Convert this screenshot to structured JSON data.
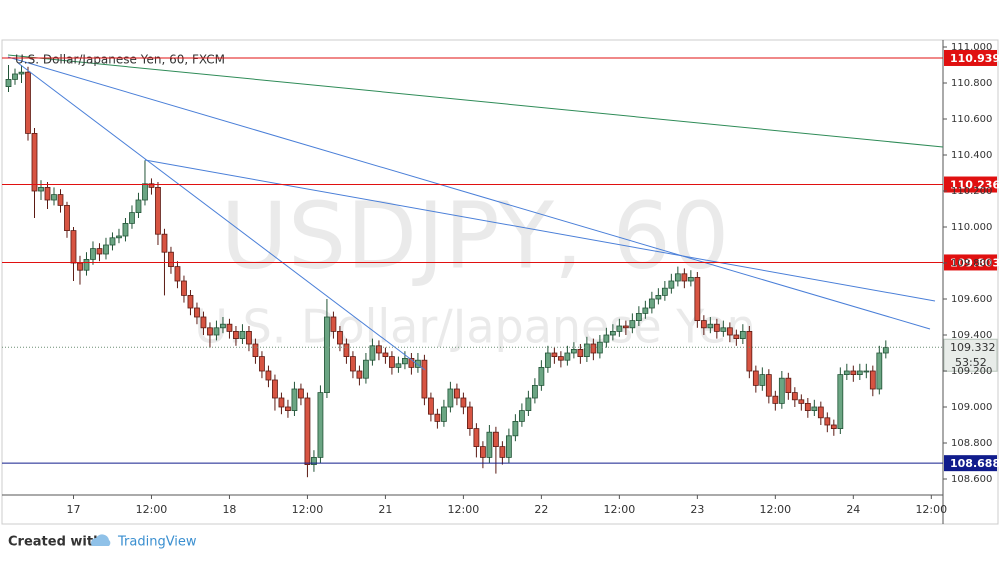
{
  "chart_data": {
    "type": "candlestick",
    "title": "U.S. Dollar/Japanese Yen, 60, FXCM",
    "watermark": "USDJPY, 60",
    "watermark_subtitle": "U.S. Dollar/Japanese Yen",
    "up_color": "#6ba583",
    "down_color": "#d75442",
    "open": [
      110.78,
      110.82,
      110.85,
      110.86,
      110.52,
      110.2,
      110.22,
      110.15,
      110.18,
      110.12,
      109.98,
      109.8,
      109.76,
      109.82,
      109.88,
      109.85,
      109.9,
      109.94,
      109.95,
      110.02,
      110.08,
      110.15,
      110.24,
      110.22,
      109.96,
      109.86,
      109.78,
      109.7,
      109.62,
      109.55,
      109.5,
      109.44,
      109.4,
      109.44,
      109.46,
      109.42,
      109.38,
      109.42,
      109.35,
      109.28,
      109.2,
      109.15,
      109.05,
      109.0,
      108.98,
      109.1,
      109.05,
      108.68,
      108.72,
      109.08,
      109.5,
      109.42,
      109.35,
      109.28,
      109.2,
      109.16,
      109.26,
      109.34,
      109.3,
      109.28,
      109.22,
      109.24,
      109.27,
      109.22,
      109.26,
      109.05,
      108.96,
      108.92,
      109.0,
      109.1,
      109.05,
      109.0,
      108.88,
      108.78,
      108.72,
      108.86,
      108.78,
      108.72,
      108.84,
      108.92,
      108.98,
      109.05,
      109.12,
      109.22,
      109.3,
      109.28,
      109.26,
      109.3,
      109.32,
      109.28,
      109.35,
      109.3,
      109.36,
      109.4,
      109.42,
      109.45,
      109.44,
      109.48,
      109.52,
      109.55,
      109.6,
      109.62,
      109.66,
      109.7,
      109.74,
      109.7,
      109.72,
      109.48,
      109.44,
      109.46,
      109.42,
      109.44,
      109.4,
      109.38,
      109.42,
      109.2,
      109.12,
      109.18,
      109.06,
      109.02,
      109.16,
      109.08,
      109.04,
      109.02,
      108.98,
      109.0,
      108.94,
      108.9,
      108.88,
      109.18,
      109.2,
      109.18,
      109.2,
      109.2,
      109.1,
      109.3
    ],
    "high": [
      110.9,
      110.88,
      110.9,
      110.89,
      110.55,
      110.26,
      110.25,
      110.22,
      110.21,
      110.14,
      110.0,
      109.84,
      109.86,
      109.92,
      109.91,
      109.94,
      109.97,
      109.99,
      110.05,
      110.12,
      110.19,
      110.37,
      110.27,
      110.25,
      109.99,
      109.89,
      109.81,
      109.73,
      109.65,
      109.58,
      109.53,
      109.47,
      109.48,
      109.5,
      109.49,
      109.45,
      109.46,
      109.45,
      109.38,
      109.31,
      109.23,
      109.18,
      109.08,
      109.04,
      109.14,
      109.13,
      109.08,
      108.76,
      109.12,
      109.6,
      109.53,
      109.45,
      109.38,
      109.31,
      109.23,
      109.3,
      109.38,
      109.37,
      109.33,
      109.31,
      109.28,
      109.31,
      109.3,
      109.3,
      109.29,
      109.08,
      108.99,
      109.04,
      109.14,
      109.13,
      109.08,
      109.03,
      108.91,
      108.81,
      108.9,
      108.89,
      108.81,
      108.88,
      108.96,
      109.02,
      109.09,
      109.16,
      109.26,
      109.34,
      109.33,
      109.31,
      109.34,
      109.36,
      109.35,
      109.39,
      109.38,
      109.4,
      109.44,
      109.46,
      109.49,
      109.48,
      109.52,
      109.56,
      109.59,
      109.64,
      109.66,
      109.7,
      109.74,
      109.78,
      109.77,
      109.76,
      109.75,
      109.51,
      109.5,
      109.49,
      109.48,
      109.47,
      109.43,
      109.46,
      109.45,
      109.23,
      109.22,
      109.21,
      109.09,
      109.2,
      109.19,
      109.11,
      109.07,
      109.05,
      109.04,
      109.03,
      108.97,
      108.93,
      109.22,
      109.24,
      109.23,
      109.24,
      109.24,
      109.23,
      109.34,
      109.37
    ],
    "low": [
      110.75,
      110.79,
      110.8,
      110.48,
      110.05,
      110.15,
      110.1,
      110.12,
      110.08,
      109.94,
      109.7,
      109.68,
      109.73,
      109.79,
      109.81,
      109.82,
      109.87,
      109.91,
      109.92,
      109.99,
      110.05,
      110.12,
      110.18,
      109.9,
      109.62,
      109.74,
      109.66,
      109.58,
      109.51,
      109.46,
      109.4,
      109.33,
      109.37,
      109.41,
      109.38,
      109.34,
      109.35,
      109.31,
      109.24,
      109.16,
      109.11,
      108.98,
      108.96,
      108.94,
      108.95,
      109.01,
      108.61,
      108.64,
      108.69,
      109.05,
      109.38,
      109.31,
      109.24,
      109.16,
      109.12,
      109.13,
      109.23,
      109.26,
      109.24,
      109.18,
      109.19,
      109.21,
      109.18,
      109.19,
      109.01,
      108.92,
      108.88,
      108.89,
      108.97,
      109.01,
      108.96,
      108.84,
      108.72,
      108.66,
      108.69,
      108.63,
      108.68,
      108.69,
      108.81,
      108.89,
      108.95,
      109.02,
      109.09,
      109.19,
      109.24,
      109.22,
      109.23,
      109.27,
      109.24,
      109.25,
      109.26,
      109.27,
      109.33,
      109.37,
      109.39,
      109.4,
      109.41,
      109.45,
      109.49,
      109.52,
      109.57,
      109.59,
      109.63,
      109.67,
      109.66,
      109.67,
      109.44,
      109.4,
      109.41,
      109.38,
      109.39,
      109.36,
      109.34,
      109.35,
      109.16,
      109.08,
      109.09,
      109.02,
      108.98,
      108.99,
      109.04,
      109.0,
      108.98,
      108.94,
      108.95,
      108.9,
      108.86,
      108.84,
      108.85,
      109.15,
      109.14,
      109.15,
      109.16,
      109.06,
      109.07,
      109.27
    ],
    "close": [
      110.82,
      110.85,
      110.86,
      110.52,
      110.2,
      110.22,
      110.15,
      110.18,
      110.12,
      109.98,
      109.8,
      109.76,
      109.82,
      109.88,
      109.85,
      109.9,
      109.94,
      109.95,
      110.02,
      110.08,
      110.15,
      110.24,
      110.22,
      109.96,
      109.86,
      109.78,
      109.7,
      109.62,
      109.55,
      109.5,
      109.44,
      109.4,
      109.44,
      109.46,
      109.42,
      109.38,
      109.42,
      109.35,
      109.28,
      109.2,
      109.15,
      109.05,
      109.0,
      108.98,
      109.1,
      109.05,
      108.68,
      108.72,
      109.08,
      109.5,
      109.42,
      109.35,
      109.28,
      109.2,
      109.16,
      109.26,
      109.34,
      109.3,
      109.28,
      109.22,
      109.24,
      109.27,
      109.22,
      109.26,
      109.05,
      108.96,
      108.92,
      109.0,
      109.1,
      109.05,
      109.0,
      108.88,
      108.78,
      108.72,
      108.86,
      108.78,
      108.72,
      108.84,
      108.92,
      108.98,
      109.05,
      109.12,
      109.22,
      109.3,
      109.28,
      109.26,
      109.3,
      109.32,
      109.28,
      109.35,
      109.3,
      109.36,
      109.4,
      109.42,
      109.45,
      109.44,
      109.48,
      109.52,
      109.55,
      109.6,
      109.62,
      109.66,
      109.7,
      109.74,
      109.7,
      109.72,
      109.48,
      109.44,
      109.46,
      109.42,
      109.44,
      109.4,
      109.38,
      109.42,
      109.2,
      109.12,
      109.18,
      109.06,
      109.02,
      109.16,
      109.08,
      109.04,
      109.02,
      108.98,
      109.0,
      108.94,
      108.9,
      108.88,
      109.18,
      109.2,
      109.18,
      109.2,
      109.2,
      109.1,
      109.3,
      109.33
    ],
    "xlim": [
      -1,
      143.8
    ],
    "xticks": [
      {
        "value": 10,
        "label": "17"
      },
      {
        "value": 22,
        "label": "12:00"
      },
      {
        "value": 34,
        "label": "18"
      },
      {
        "value": 46,
        "label": "12:00"
      },
      {
        "value": 58,
        "label": "21"
      },
      {
        "value": 70,
        "label": "12:00"
      },
      {
        "value": 82,
        "label": "22"
      },
      {
        "value": 94,
        "label": "12:00"
      },
      {
        "value": 106,
        "label": "23"
      },
      {
        "value": 118,
        "label": "12:00"
      },
      {
        "value": 130,
        "label": "24"
      },
      {
        "value": 142,
        "label": "12:00"
      }
    ],
    "ylim": [
      108.6,
      111.0
    ],
    "yticks": [
      {
        "value": 108.6,
        "label": "108.600"
      },
      {
        "value": 108.8,
        "label": "108.800"
      },
      {
        "value": 109.0,
        "label": "109.000"
      },
      {
        "value": 109.2,
        "label": "109.200"
      },
      {
        "value": 109.4,
        "label": "109.400"
      },
      {
        "value": 109.6,
        "label": "109.600"
      },
      {
        "value": 109.8,
        "label": "109.800"
      },
      {
        "value": 110.0,
        "label": "110.000"
      },
      {
        "value": 110.2,
        "label": "110.200"
      },
      {
        "value": 110.4,
        "label": "110.400"
      },
      {
        "value": 110.6,
        "label": "110.600"
      },
      {
        "value": 110.8,
        "label": "110.800"
      },
      {
        "value": 111.0,
        "label": "111.000"
      }
    ],
    "hlines": [
      {
        "value": 110.939,
        "color": "#e01010"
      },
      {
        "value": 110.236,
        "color": "#e01010"
      },
      {
        "value": 109.803,
        "color": "#e01010"
      },
      {
        "value": 108.688,
        "color": "#101c8c"
      }
    ],
    "last_price": 109.332,
    "countdown": "53:52"
  },
  "footer": {
    "prefix": "Created with",
    "brand": "TradingView"
  }
}
